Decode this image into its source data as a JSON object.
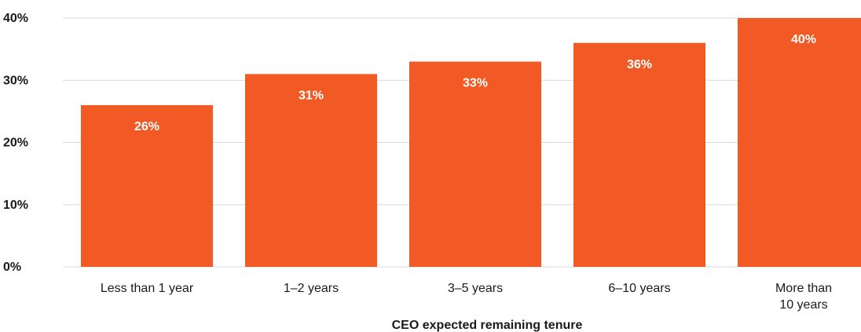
{
  "chart_data": {
    "type": "bar",
    "categories": [
      [
        "Less than 1 year"
      ],
      [
        "1–2 years"
      ],
      [
        "3–5 years"
      ],
      [
        "6–10 years"
      ],
      [
        "More than",
        "10 years"
      ]
    ],
    "values": [
      26,
      31,
      33,
      36,
      40
    ],
    "data_labels": [
      "26%",
      "31%",
      "33%",
      "36%",
      "40%"
    ],
    "y_ticks": [
      0,
      10,
      20,
      30,
      40
    ],
    "y_tick_labels": [
      "0%",
      "10%",
      "20%",
      "30%",
      "40%"
    ],
    "ylim": [
      0,
      40
    ],
    "xlabel": "CEO expected remaining tenure",
    "ylabel": "",
    "title": "",
    "grid": true,
    "bar_color": "#F15A24",
    "label_color": "#FFFFFF",
    "grid_color": "#D9D9D9"
  }
}
